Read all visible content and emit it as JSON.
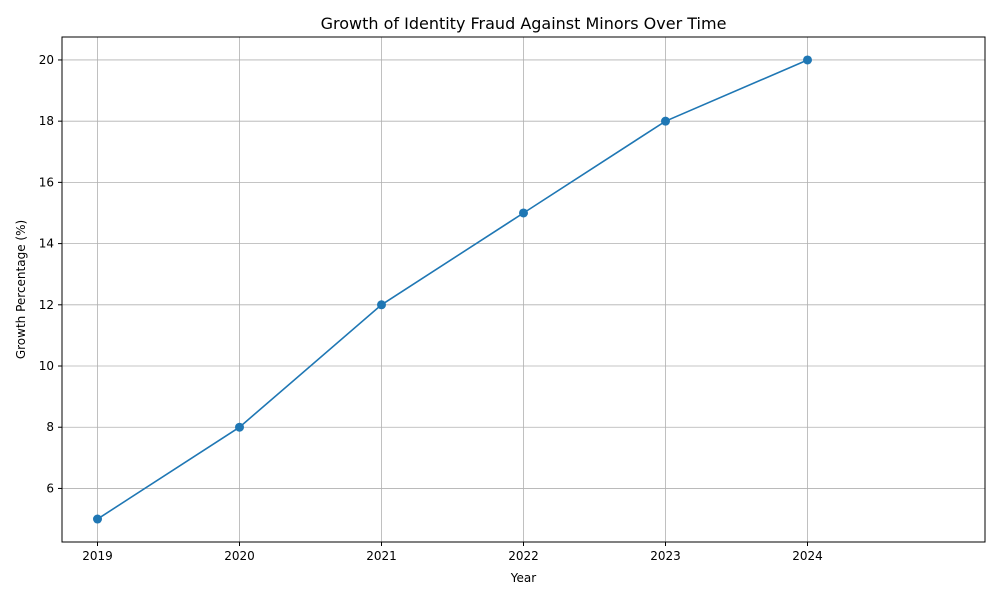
{
  "chart_data": {
    "type": "line",
    "title": "Growth of Identity Fraud Against Minors Over Time",
    "xlabel": "Year",
    "ylabel": "Growth Percentage (%)",
    "x": [
      2019,
      2020,
      2021,
      2022,
      2023,
      2024
    ],
    "series": [
      {
        "values": [
          5,
          8,
          12,
          15,
          18,
          20
        ]
      }
    ],
    "xticks": [
      "2019",
      "2020",
      "2021",
      "2022",
      "2023",
      "2024"
    ],
    "yticks": [
      6,
      8,
      10,
      12,
      14,
      16,
      18,
      20
    ],
    "xlim": [
      2018.75,
      2025.25
    ],
    "ylim": [
      4.25,
      20.75
    ],
    "grid": true,
    "line_color": "#1f77b4",
    "grid_color": "#b0b0b0"
  }
}
